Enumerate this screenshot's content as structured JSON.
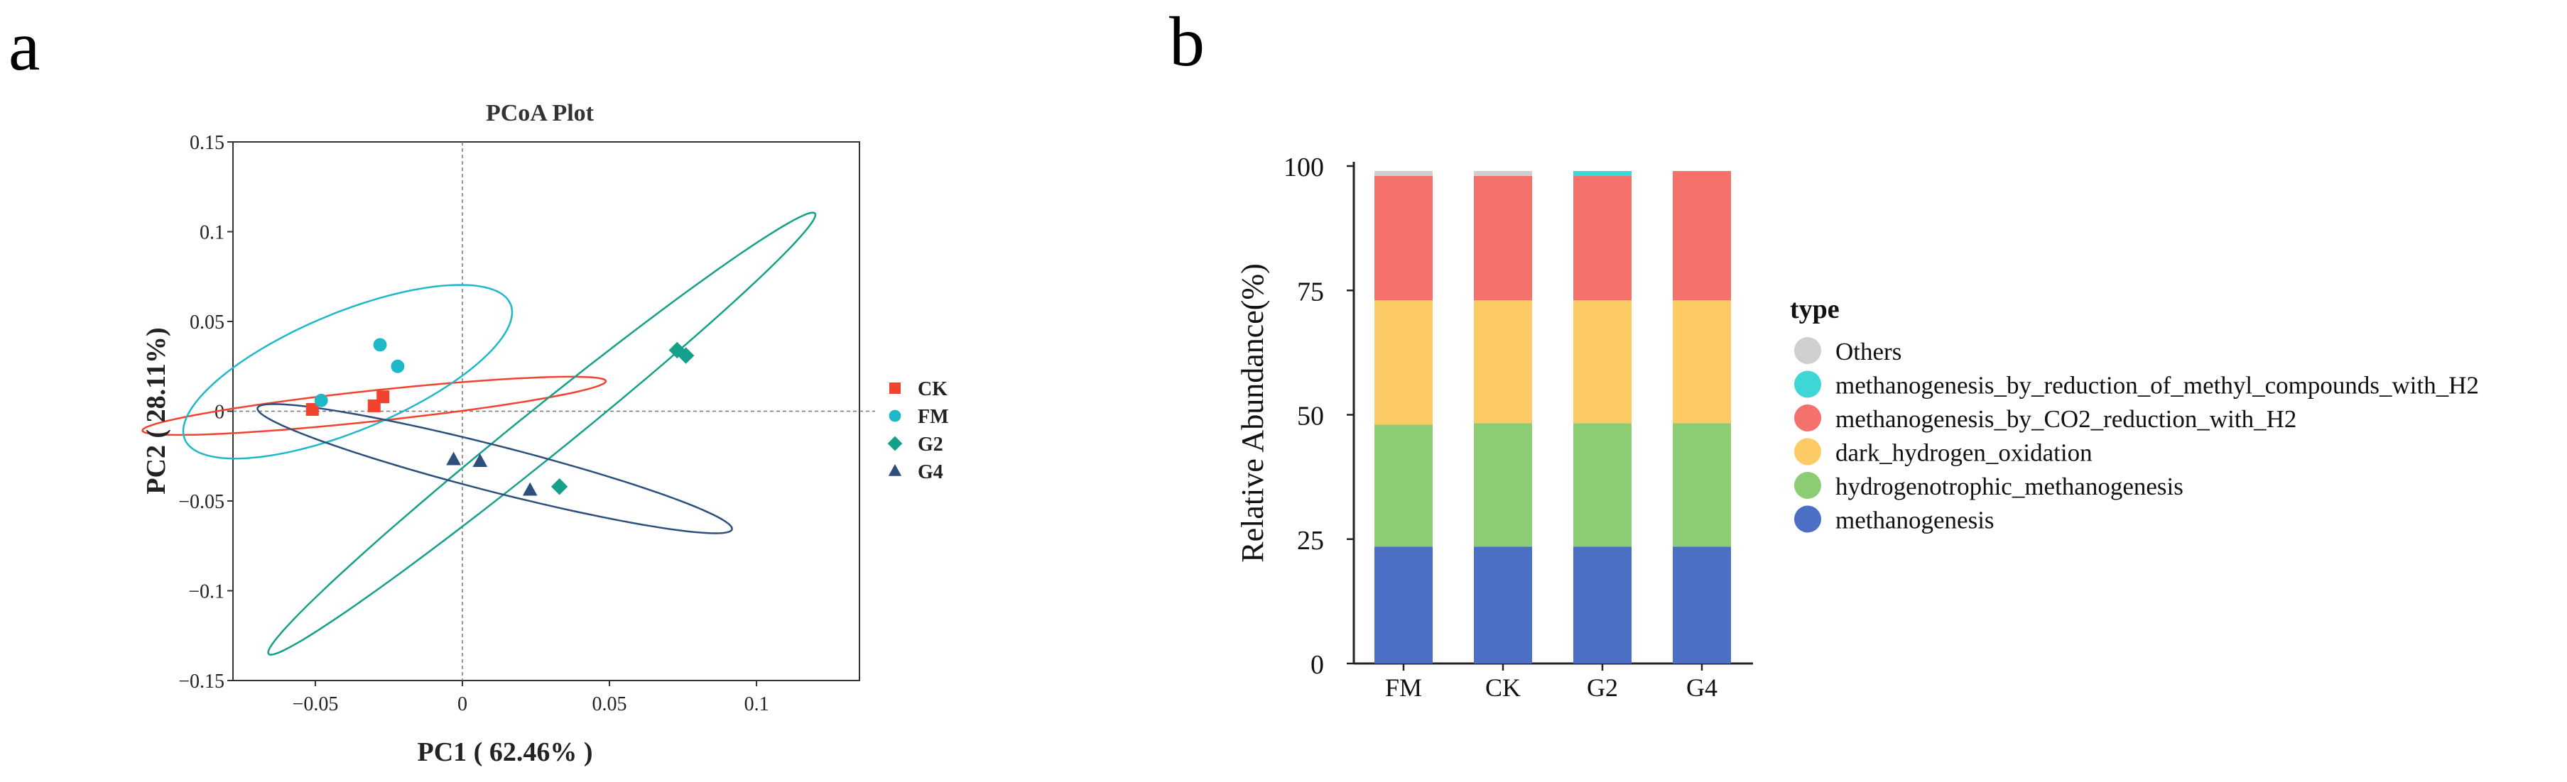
{
  "panel_labels": {
    "a": "a",
    "b": "b"
  },
  "colors": {
    "CK": "#f2432f",
    "FM": "#1fb8c9",
    "G2": "#15a08a",
    "G4": "#2d4f7c",
    "ellipse_CK": "#f2432f",
    "ellipse_FM": "#1fb8c9",
    "ellipse_G2": "#15a08a",
    "ellipse_G4": "#2d4f7c",
    "Others": "#cfcfcf",
    "methyl": "#3fd6d6",
    "co2": "#f4716c",
    "dark": "#fccb66",
    "hydro": "#8ccc72",
    "meth": "#4b6fc4"
  },
  "chart_data": [
    {
      "type": "scatter",
      "title": "PCoA Plot",
      "xlabel": "PC1 ( 62.46% )",
      "ylabel": "PC2 ( 28.11%)",
      "xlim": [
        -0.078,
        0.135
      ],
      "ylim": [
        -0.15,
        0.15
      ],
      "x_ticks": [
        -0.05,
        0,
        0.05,
        0.1
      ],
      "x_tick_labels": [
        "−0.05",
        "0",
        "0.05",
        "0.1"
      ],
      "y_ticks": [
        -0.15,
        -0.1,
        -0.05,
        0,
        0.05,
        0.1,
        0.15
      ],
      "y_tick_labels": [
        "−0.15",
        "−0.1",
        "−0.05",
        "0",
        "0.05",
        "0.1",
        "0.15"
      ],
      "legend_position": "right",
      "series": [
        {
          "name": "CK",
          "marker": "square",
          "color_key": "CK",
          "points": [
            [
              -0.051,
              0.001
            ],
            [
              -0.03,
              0.003
            ],
            [
              -0.027,
              0.008
            ]
          ],
          "ellipse": {
            "cx": -0.03,
            "cy": 0.003,
            "rx": 0.08,
            "ry": 0.0085,
            "angle_deg": 10
          }
        },
        {
          "name": "FM",
          "marker": "circle",
          "color_key": "FM",
          "points": [
            [
              -0.048,
              0.006
            ],
            [
              -0.028,
              0.037
            ],
            [
              -0.022,
              0.025
            ]
          ],
          "ellipse": {
            "cx": -0.039,
            "cy": 0.022,
            "rx": 0.068,
            "ry": 0.029,
            "angle_deg": 39
          }
        },
        {
          "name": "G2",
          "marker": "diamond",
          "color_key": "G2",
          "points": [
            [
              0.033,
              -0.042
            ],
            [
              0.073,
              0.034
            ],
            [
              0.076,
              0.031
            ]
          ],
          "ellipse": {
            "cx": 0.027,
            "cy": -0.0125,
            "rx": 0.154,
            "ry": 0.0103,
            "angle_deg": 53
          }
        },
        {
          "name": "G4",
          "marker": "triangle",
          "color_key": "G4",
          "points": [
            [
              -0.003,
              -0.027
            ],
            [
              0.006,
              -0.028
            ],
            [
              0.023,
              -0.044
            ]
          ],
          "ellipse": {
            "cx": 0.011,
            "cy": -0.032,
            "rx": 0.0875,
            "ry": 0.0122,
            "angle_deg": -23
          }
        }
      ]
    },
    {
      "type": "bar",
      "stacked": true,
      "title": "",
      "xlabel": "",
      "ylabel": "Relative Abundance(%)",
      "ylim": [
        0,
        100
      ],
      "y_ticks": [
        0,
        25,
        50,
        75,
        100
      ],
      "categories": [
        "FM",
        "CK",
        "G2",
        "G4"
      ],
      "legend_title": "type",
      "legend_position": "right",
      "series": [
        {
          "name": "methanogenesis",
          "color_key": "meth",
          "values": [
            23.5,
            23.5,
            23.5,
            23.5
          ]
        },
        {
          "name": "hydrogenotrophic_methanogenesis",
          "color_key": "hydro",
          "values": [
            24.5,
            24.8,
            24.8,
            24.8
          ]
        },
        {
          "name": "dark_hydrogen_oxidation",
          "color_key": "dark",
          "values": [
            25.0,
            24.7,
            24.7,
            24.7
          ]
        },
        {
          "name": "methanogenesis_by_CO2_reduction_with_H2",
          "color_key": "co2",
          "values": [
            25.0,
            25.0,
            25.0,
            26.0
          ]
        },
        {
          "name": "methanogenesis_by_reduction_of_methyl_compounds_with_H2",
          "color_key": "methyl",
          "values": [
            0,
            0,
            1.0,
            0
          ]
        },
        {
          "name": "Others",
          "color_key": "Others",
          "values": [
            1.0,
            1.0,
            0,
            0
          ]
        }
      ]
    }
  ]
}
